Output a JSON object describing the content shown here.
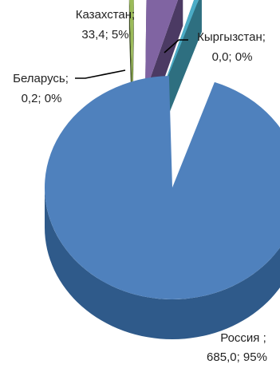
{
  "chart_data": {
    "type": "pie",
    "style": "3d-exploded",
    "slices": [
      {
        "name": "Россия",
        "value": 685.0,
        "percent": 95,
        "label_line1": "Россия ;",
        "label_line2": "685,0; 95%",
        "color": "#4F81BD",
        "side_color": "#2F5A8A"
      },
      {
        "name": "Беларусь",
        "value": 0.2,
        "percent": 0,
        "label_line1": "Беларусь;",
        "label_line2": "0,2; 0%",
        "color": "#9BBB59",
        "side_color": "#3B4A20"
      },
      {
        "name": "Казахстан",
        "value": 33.4,
        "percent": 5,
        "label_line1": "Казахстан;",
        "label_line2": "33,4; 5%",
        "color": "#8064A2",
        "side_color": "#4B3A63"
      },
      {
        "name": "Кыргызстан",
        "value": 0.0,
        "percent": 0,
        "label_line1": "Кыргызстан;",
        "label_line2": "0,0; 0%",
        "color": "#4BACC6",
        "side_color": "#2E6F80"
      }
    ]
  }
}
